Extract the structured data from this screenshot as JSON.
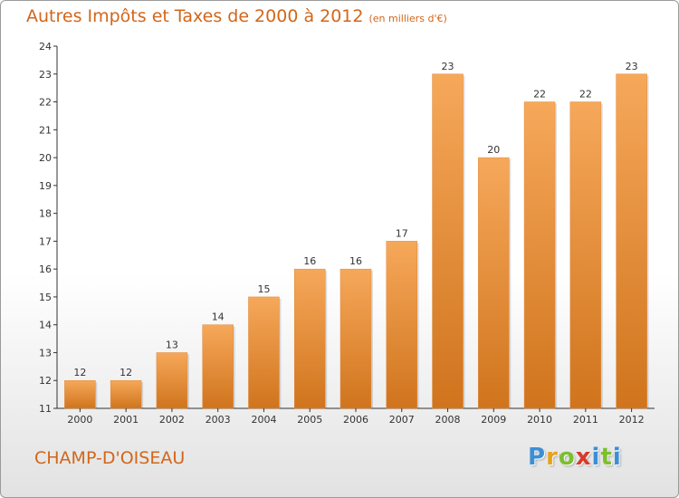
{
  "header": {
    "title": "Autres Impôts et Taxes de 2000 à 2012",
    "subtitle": "(en milliers d'€)"
  },
  "footer": {
    "commune": "CHAMP-D'OISEAU",
    "logo": [
      "P",
      "r",
      "o",
      "x",
      "i",
      "t",
      "i"
    ],
    "logo_colors": [
      "#3b8fd6",
      "#e8a21a",
      "#7bbf2e",
      "#d83a2a",
      "#3b8fd6",
      "#7bbf2e",
      "#3b8fd6"
    ]
  },
  "colors": {
    "accent": "#d2661a",
    "bar_top": "#f6a85a",
    "bar_bottom": "#d0741d"
  },
  "chart_data": {
    "type": "bar",
    "title": "Autres Impôts et Taxes de 2000 à 2012",
    "subtitle": "(en milliers d'€)",
    "xlabel": "",
    "ylabel": "",
    "categories": [
      "2000",
      "2001",
      "2002",
      "2003",
      "2004",
      "2005",
      "2006",
      "2007",
      "2008",
      "2009",
      "2010",
      "2011",
      "2012"
    ],
    "values": [
      12,
      12,
      13,
      14,
      15,
      16,
      16,
      17,
      23,
      20,
      22,
      22,
      23
    ],
    "ylim": [
      11,
      24
    ],
    "yticks": [
      11,
      12,
      13,
      14,
      15,
      16,
      17,
      18,
      19,
      20,
      21,
      22,
      23,
      24
    ],
    "grid": false,
    "legend": "none"
  }
}
